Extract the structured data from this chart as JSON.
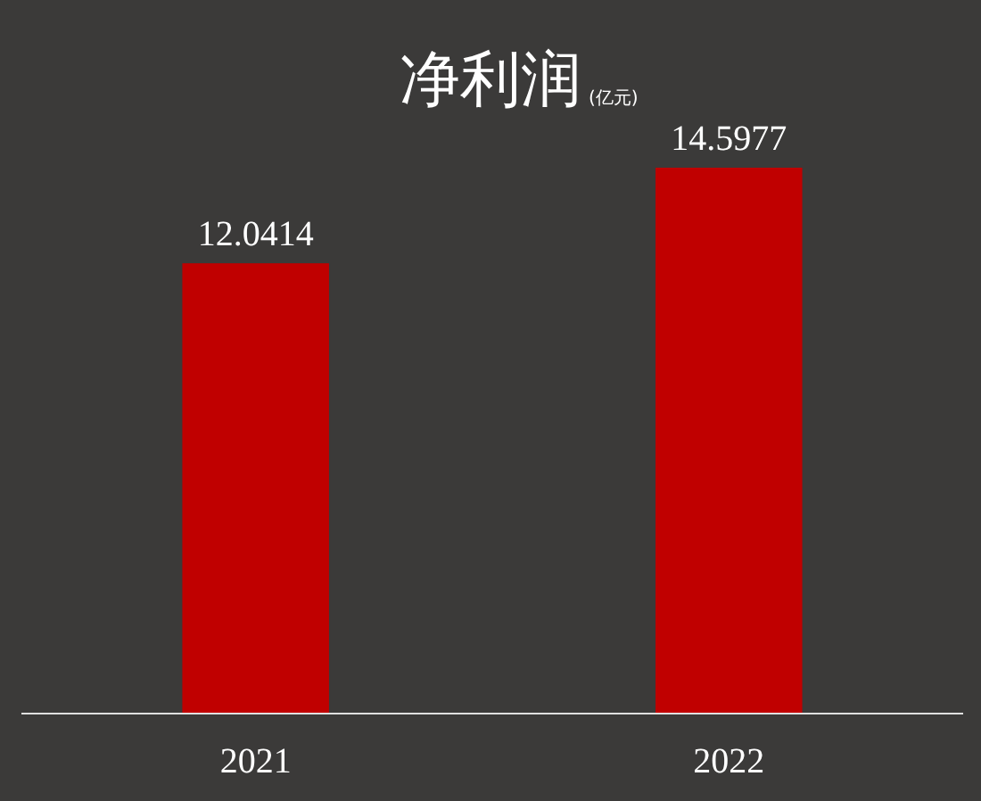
{
  "chart_data": {
    "type": "bar",
    "title": "净利润",
    "subtitle": "(亿元)",
    "categories": [
      "2021",
      "2022"
    ],
    "values": [
      12.0414,
      14.5977
    ],
    "color": "#c00000",
    "data_labels": true
  }
}
